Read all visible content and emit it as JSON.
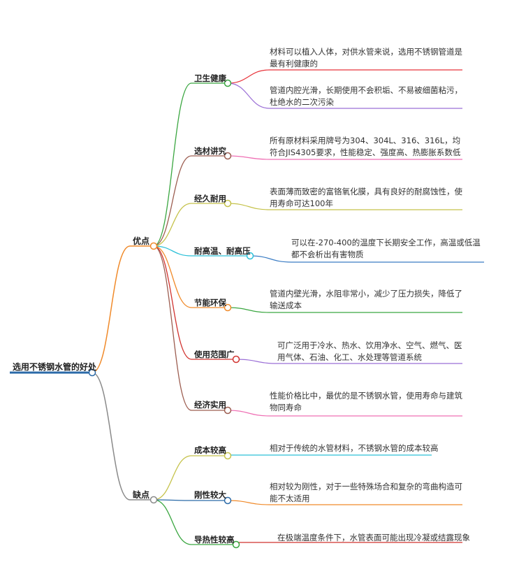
{
  "root": {
    "label": "选用不锈钢水管的好处",
    "color": "#2b6aa8"
  },
  "branches": [
    {
      "label": "优点",
      "color": "#f08a2a",
      "children": [
        {
          "label": "卫生健康",
          "color": "#3aa640",
          "details": [
            {
              "text": "材料可以植入人体，对供水管来说，选用不锈钢管道是最有利健康的",
              "color": "#e8333a"
            },
            {
              "text": "管道内腔光滑，长期使用不会积垢、不易被细菌粘污，杜绝水的二次污染",
              "color": "#9b6fd6"
            }
          ]
        },
        {
          "label": "选材讲究",
          "color": "#9c5d50",
          "details": [
            {
              "text": "所有原材料采用牌号为304、304L、316、316L，均符合JIS4305要求，性能稳定、强度高、热膨胀系数低",
              "color": "#ef6fb4"
            }
          ]
        },
        {
          "label": "经久耐用",
          "color": "#c5c24a",
          "details": [
            {
              "text": "表面薄而致密的富铬氧化膜，具有良好的耐腐蚀性，使用寿命可达100年",
              "color": "#c5c24a"
            }
          ]
        },
        {
          "label": "耐高温、耐高压",
          "color": "#2cc0d8",
          "details": [
            {
              "text": "可以在-270-400的温度下长期安全工作，高温或低温都不会析出有害物质",
              "color": "#3a7cc4"
            }
          ]
        },
        {
          "label": "节能环保",
          "color": "#f08a2a",
          "details": [
            {
              "text": "管道内壁光滑，水阻非常小，减少了压力损失，降低了输送成本",
              "color": "#3aa640"
            }
          ]
        },
        {
          "label": "使用范围广",
          "color": "#d1332f",
          "details": [
            {
              "text": "可广泛用于冷水、热水、饮用净水、空气、燃气、医用气体、石油、化工、水处理等管道系统",
              "color": "#9b6fd6"
            }
          ]
        },
        {
          "label": "经济实用",
          "color": "#9c5d50",
          "details": [
            {
              "text": "性能价格比中，最优的是不锈钢水管，使用寿命与建筑物同寿命",
              "color": "#ef6fb4"
            }
          ]
        }
      ]
    },
    {
      "label": "缺点",
      "color": "#8a8a8a",
      "children": [
        {
          "label": "成本较高",
          "color": "#c5c24a",
          "details": [
            {
              "text": "相对于传统的水管材料，不锈钢水管的成本较高",
              "color": "#2cc0d8"
            }
          ]
        },
        {
          "label": "刚性较大",
          "color": "#2b6aa8",
          "details": [
            {
              "text": "相对较为刚性，对于一些特殊场合和复杂的弯曲构造可能不太适用",
              "color": "#f08a2a"
            }
          ]
        },
        {
          "label": "导热性较高",
          "color": "#3aa640",
          "details": [
            {
              "text": "在极端温度条件下，水管表面可能出现冷凝或结露现象",
              "color": "#d1332f"
            }
          ]
        }
      ]
    }
  ]
}
